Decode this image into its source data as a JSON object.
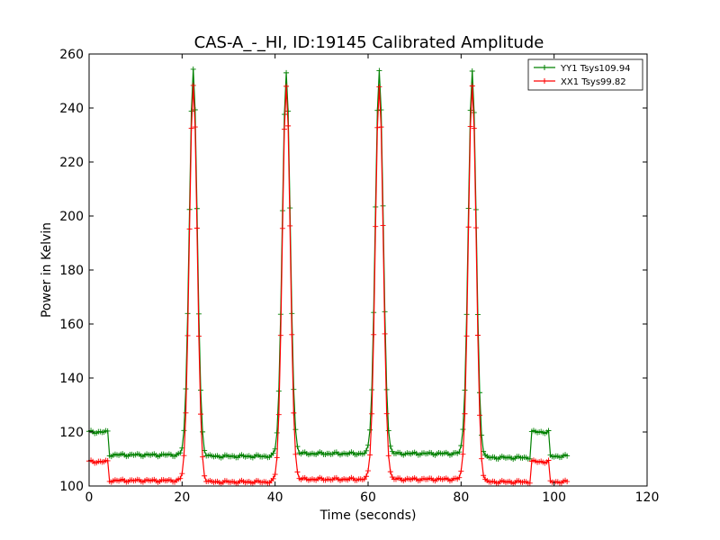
{
  "chart_data": {
    "type": "line",
    "title": "CAS-A_-_HI, ID:19145 Calibrated Amplitude",
    "xlabel": "Time (seconds)",
    "ylabel": "Power in Kelvin",
    "xlim": [
      0,
      120
    ],
    "ylim": [
      100,
      260
    ],
    "xticks": [
      0,
      20,
      40,
      60,
      80,
      100,
      120
    ],
    "yticks": [
      100,
      120,
      140,
      160,
      180,
      200,
      220,
      240,
      260
    ],
    "grid": false,
    "legend_position": "top-right",
    "marker": "+",
    "series": [
      {
        "name": "YY1 Tsys109.94",
        "color": "#008000",
        "baseline_segments": [
          {
            "x0": 0,
            "x1": 4,
            "y": 120
          },
          {
            "x0": 4,
            "x1": 20,
            "y": 111.5
          },
          {
            "x0": 24,
            "x1": 40,
            "y": 111
          },
          {
            "x0": 44,
            "x1": 60,
            "y": 112
          },
          {
            "x0": 64,
            "x1": 80,
            "y": 112
          },
          {
            "x0": 84,
            "x1": 95,
            "y": 110.5
          },
          {
            "x0": 95,
            "x1": 99,
            "y": 120
          },
          {
            "x0": 99,
            "x1": 103,
            "y": 111
          }
        ],
        "peaks": [
          {
            "x": 22.4,
            "y": 254
          },
          {
            "x": 42.4,
            "y": 253
          },
          {
            "x": 62.4,
            "y": 254
          },
          {
            "x": 82.4,
            "y": 253.5
          }
        ]
      },
      {
        "name": "XX1 Tsys99.82",
        "color": "#ff0000",
        "baseline_segments": [
          {
            "x0": 0,
            "x1": 4,
            "y": 109
          },
          {
            "x0": 4,
            "x1": 20,
            "y": 102
          },
          {
            "x0": 24,
            "x1": 40,
            "y": 101.5
          },
          {
            "x0": 44,
            "x1": 60,
            "y": 102.5
          },
          {
            "x0": 64,
            "x1": 80,
            "y": 102.5
          },
          {
            "x0": 84,
            "x1": 95,
            "y": 101.5
          },
          {
            "x0": 95,
            "x1": 99,
            "y": 109
          },
          {
            "x0": 99,
            "x1": 103,
            "y": 101.5
          }
        ],
        "peaks": [
          {
            "x": 22.4,
            "y": 248
          },
          {
            "x": 42.4,
            "y": 248
          },
          {
            "x": 62.4,
            "y": 248
          },
          {
            "x": 82.4,
            "y": 248
          }
        ]
      }
    ]
  }
}
